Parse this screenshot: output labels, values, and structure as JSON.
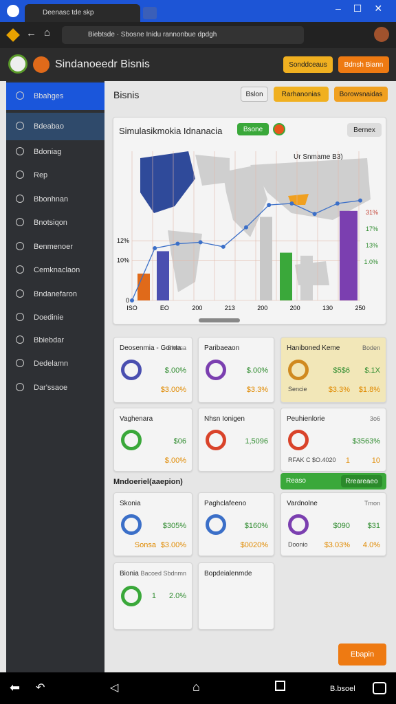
{
  "browser": {
    "tab_title": "Deenasc tde skp",
    "url": "Biebtsde · Sbosne Inidu rannonbue dpdgh"
  },
  "app": {
    "title": "Sindanoeedr Bisnis",
    "buttons": [
      "Sonddceaus",
      "Bdnsh Biann"
    ]
  },
  "sidebar": {
    "items": [
      "Bbahges",
      "Bdeabao",
      "Bdoniag",
      "Rep",
      "Bbonhnan",
      "Bnotsiqon",
      "Benmenoer",
      "Cemknaclaon",
      "Bndanefaron",
      "Doedinie",
      "Bbiebdar",
      "Dedelamn",
      "Dar'ssaoe"
    ]
  },
  "page": {
    "title": "Bisnis",
    "buttons": [
      "Bslon",
      "Rarhanonias",
      "Borowsnaidas"
    ]
  },
  "map_card": {
    "title": "Simulasikmokia Idnanacia",
    "badge": "Bsone",
    "button": "Bernex",
    "note": "Ur Snmame B3)",
    "ylim": [
      0,
      100
    ],
    "y_labels": [
      {
        "value": 0,
        "label": "0"
      },
      {
        "value": 27,
        "label": "10%"
      },
      {
        "value": 40,
        "label": "12%"
      }
    ],
    "x_labels": [
      "ISO",
      "EO",
      "200",
      "213",
      "200",
      "200",
      "130",
      "250"
    ],
    "right_labels": [
      "31%",
      "17%",
      "13%",
      "1.0%"
    ],
    "bars": [
      {
        "value": 18,
        "color": "#e06a1a"
      },
      {
        "value": 33,
        "color": "#4a4fb0"
      },
      {
        "value": 56,
        "color": "#c8c8c8"
      },
      {
        "value": 32,
        "color": "#3aa83a"
      },
      {
        "value": 30,
        "color": "#cfcfcf"
      },
      {
        "value": 60,
        "color": "#7b3fb0"
      }
    ],
    "line": [
      0,
      35,
      38,
      39,
      36,
      49,
      64,
      65,
      58,
      65,
      67
    ]
  },
  "cards": [
    {
      "title": "Deosenmia - Gomta",
      "subtitle": "Bionsa",
      "rows": [
        [
          "$.00%"
        ],
        [
          "$3.00%"
        ]
      ]
    },
    {
      "title": "Paribaeaon",
      "rows": [
        [
          "$.00%"
        ],
        [
          "$3.3%"
        ]
      ]
    },
    {
      "title": "Haniboned Keme",
      "subtitle": "Boden",
      "rows": [
        [
          "$5$6",
          "$.1X"
        ],
        [
          "Sencie",
          "$3.3%",
          "$1.8%"
        ]
      ]
    },
    {
      "title": "Vaghenara",
      "rows": [
        [
          "$06"
        ],
        [
          "$.00%"
        ]
      ]
    },
    {
      "title": "Nhsn Ionigen",
      "rows": [
        [
          "1,5096"
        ]
      ]
    },
    {
      "title": "Peuhienlorie",
      "subtitle": "3o6",
      "rows": [
        [
          "$3563%"
        ],
        [
          "RFAK C $O.4020",
          "1",
          "10"
        ]
      ]
    },
    {
      "title": "Skonia",
      "rows": [
        [
          "$305%"
        ],
        [
          "Sonsa",
          "$3.00%"
        ]
      ]
    },
    {
      "title": "Paghclafeeno",
      "rows": [
        [
          "$160%"
        ],
        [
          "$0020%"
        ]
      ]
    },
    {
      "title": "Vardnolne",
      "subtitle": "Tmon",
      "rows": [
        [
          "$090",
          "$31"
        ],
        [
          "Doonio",
          "$3.03%",
          "4.0%"
        ]
      ]
    },
    {
      "title": "Bionia",
      "subtitle": "Bacoed Sbdnmn",
      "rows": [
        [
          "1",
          "2.0%"
        ]
      ]
    },
    {
      "title": "Bopdeialenmde"
    }
  ],
  "section": {
    "title": "Mndoeriel(aaepion)",
    "buttons": [
      "Reaso",
      "Rreareaeo"
    ]
  },
  "fab": "Ebapin",
  "navbar": {
    "label": "B.bsoel"
  }
}
